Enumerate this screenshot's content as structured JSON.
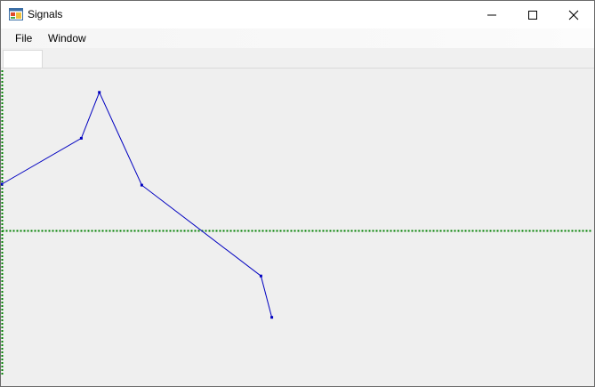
{
  "window": {
    "title": "Signals",
    "icons": {
      "app": "app-window-icon",
      "minimize": "minimize-icon",
      "maximize": "maximize-icon",
      "close": "close-icon"
    }
  },
  "menu": {
    "items": [
      {
        "label": "File"
      },
      {
        "label": "Window"
      }
    ]
  },
  "tabs": [
    {
      "label": ""
    }
  ],
  "chart_data": {
    "type": "line",
    "title": "",
    "xlabel": "",
    "ylabel": "",
    "grid": false,
    "axes_color": "#008000",
    "series": [
      {
        "color": "#0000c0",
        "x": [
          0,
          88,
          108,
          155,
          287,
          299
        ],
        "y": [
          50,
          100,
          150,
          49,
          -50,
          -95
        ]
      }
    ],
    "xlim": [
      -1,
      656
    ],
    "ylim": [
      -168,
      176
    ]
  },
  "colors": {
    "window_bg": "#f0f0f0",
    "plot_bg": "#efefef",
    "axis": "#008000",
    "series": "#0000c0"
  }
}
